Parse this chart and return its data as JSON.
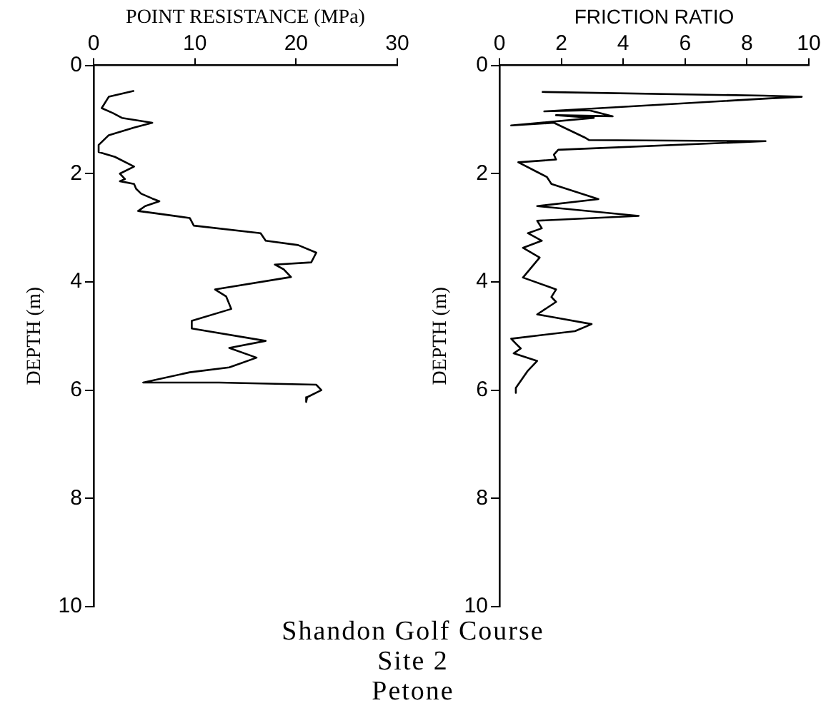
{
  "chart_data": [
    {
      "type": "line",
      "title": "Shandon Golf Course",
      "annotations": [
        "Site 2",
        "Petone"
      ],
      "xlabel": "POINT RESISTANCE (MPa)",
      "ylabel": "DEPTH (m)",
      "xlim": [
        0,
        30
      ],
      "xticks": [
        0,
        10,
        20,
        30
      ],
      "ylim": [
        10,
        0
      ],
      "yticks": [
        0,
        2,
        4,
        6,
        8,
        10
      ],
      "series": [
        {
          "color": "#000000",
          "x": [
            4.0,
            1.5,
            0.8,
            1.9,
            2.8,
            5.8,
            4.0,
            1.5,
            0.5,
            0.5,
            2.1,
            4.0,
            2.6,
            3.1,
            2.6,
            4.0,
            4.2,
            4.7,
            5.8,
            6.5,
            5.1,
            4.4,
            6.0,
            9.5,
            9.9,
            16.5,
            17.0,
            20.2,
            22.0,
            21.5,
            17.9,
            18.8,
            19.5,
            12.0,
            13.1,
            13.6,
            9.7,
            9.7,
            17.0,
            13.4,
            16.1,
            13.4,
            9.5,
            4.9,
            12.4,
            22.0,
            22.5,
            21.1,
            21.0
          ],
          "values": [
            0.47,
            0.58,
            0.79,
            0.88,
            0.97,
            1.06,
            1.15,
            1.29,
            1.47,
            1.6,
            1.69,
            1.87,
            2.0,
            2.1,
            2.14,
            2.19,
            2.28,
            2.37,
            2.46,
            2.51,
            2.6,
            2.69,
            2.73,
            2.82,
            2.96,
            3.1,
            3.24,
            3.32,
            3.46,
            3.64,
            3.68,
            3.77,
            3.91,
            4.14,
            4.27,
            4.5,
            4.72,
            4.86,
            5.09,
            5.22,
            5.4,
            5.58,
            5.67,
            5.86,
            5.86,
            5.9,
            6.0,
            6.13,
            6.22
          ]
        }
      ]
    },
    {
      "type": "line",
      "xlabel": "FRICTION RATIO",
      "ylabel": "DEPTH (m)",
      "xlim": [
        0,
        10
      ],
      "xticks": [
        0,
        2,
        4,
        6,
        8,
        10
      ],
      "ylim": [
        10,
        0
      ],
      "yticks": [
        0,
        2,
        4,
        6,
        8,
        10
      ],
      "series": [
        {
          "color": "#000000",
          "x": [
            1.37,
            8.55,
            9.77,
            8.7,
            1.45,
            2.9,
            3.66,
            1.83,
            3.05,
            0.38,
            1.76,
            2.75,
            2.9,
            8.6,
            1.9,
            1.76,
            1.83,
            0.61,
            1.22,
            1.53,
            1.68,
            3.2,
            1.22,
            4.5,
            1.22,
            1.37,
            0.92,
            1.37,
            0.76,
            1.3,
            0.76,
            1.83,
            1.68,
            1.83,
            1.22,
            2.98,
            2.44,
            0.38,
            0.53,
            0.69,
            0.46,
            1.22,
            0.92,
            0.53,
            0.53
          ],
          "values": [
            0.49,
            0.56,
            0.58,
            0.61,
            0.85,
            0.83,
            0.94,
            0.92,
            0.97,
            1.11,
            1.06,
            1.33,
            1.38,
            1.4,
            1.56,
            1.65,
            1.74,
            1.79,
            1.97,
            2.06,
            2.19,
            2.47,
            2.6,
            2.78,
            2.87,
            3.01,
            3.1,
            3.24,
            3.37,
            3.55,
            3.92,
            4.14,
            4.28,
            4.37,
            4.6,
            4.78,
            4.91,
            5.05,
            5.14,
            5.23,
            5.32,
            5.46,
            5.64,
            5.96,
            6.05
          ]
        }
      ]
    }
  ]
}
